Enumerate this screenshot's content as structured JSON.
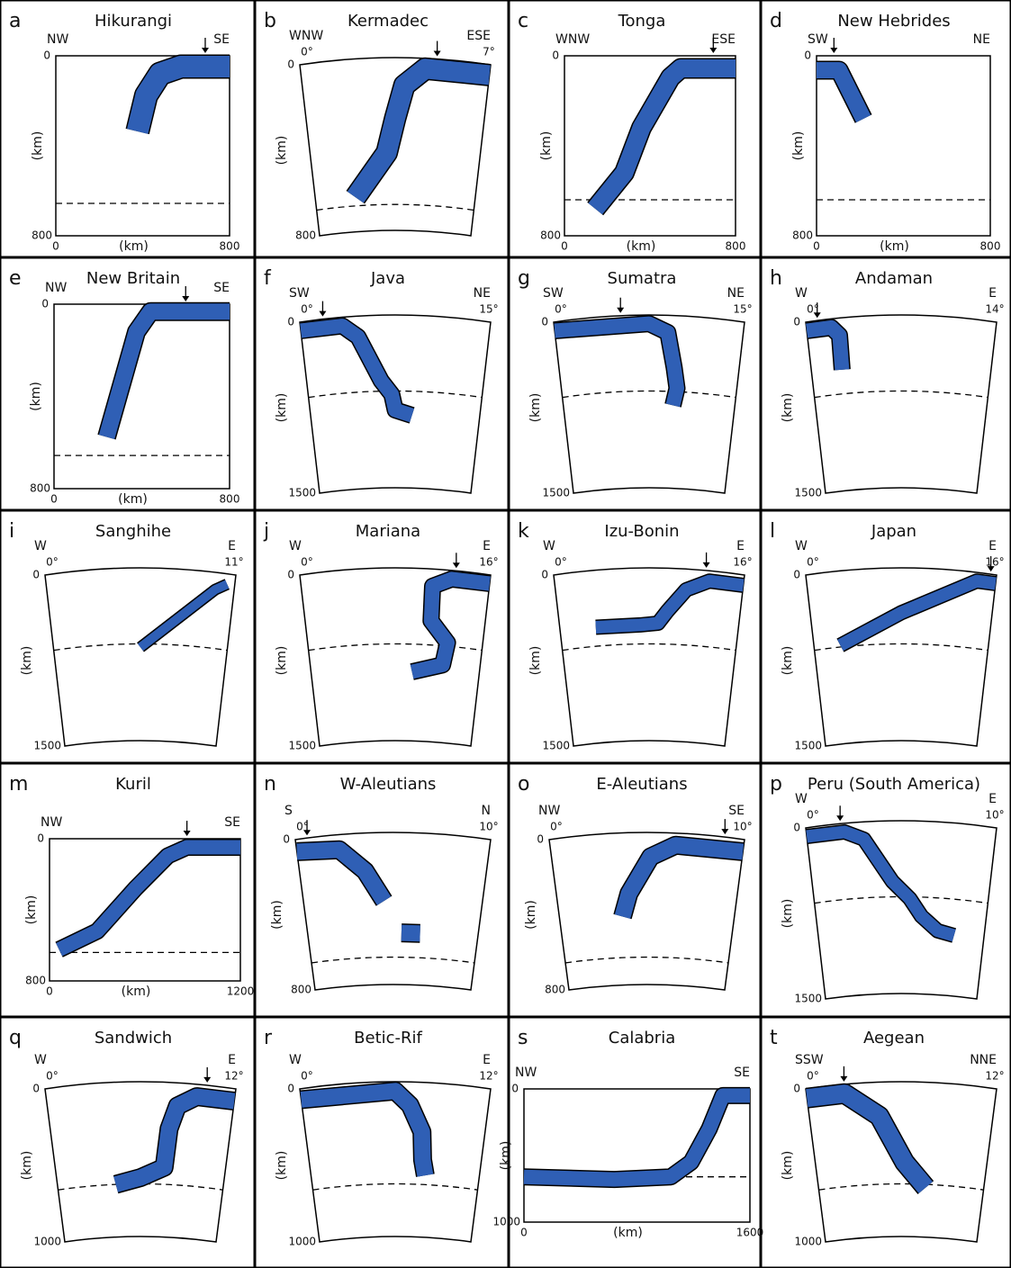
{
  "panels": [
    {
      "letter": "a",
      "title": "Hikurangi",
      "left": "NW",
      "right": "SE",
      "depth_top": "0",
      "depth_bottom": "800",
      "depth_unit": "(km)",
      "x_start": "0",
      "x_unit": "(km)",
      "x_end": "800"
    },
    {
      "letter": "b",
      "title": "Kermadec",
      "left": "WNW",
      "right": "ESE",
      "deg_start": "0°",
      "deg_end": "7°",
      "depth_top": "0",
      "depth_bottom": "800",
      "depth_unit": "(km)"
    },
    {
      "letter": "c",
      "title": "Tonga",
      "left": "WNW",
      "right": "ESE",
      "depth_top": "0",
      "depth_bottom": "800",
      "depth_unit": "(km)",
      "x_start": "0",
      "x_unit": "(km)",
      "x_end": "800"
    },
    {
      "letter": "d",
      "title": "New Hebrides",
      "left": "SW",
      "right": "NE",
      "depth_top": "0",
      "depth_bottom": "800",
      "depth_unit": "(km)",
      "x_start": "0",
      "x_unit": "(km)",
      "x_end": "800"
    },
    {
      "letter": "e",
      "title": "New Britain",
      "left": "NW",
      "right": "SE",
      "depth_top": "0",
      "depth_bottom": "800",
      "depth_unit": "(km)",
      "x_start": "0",
      "x_unit": "(km)",
      "x_end": "800"
    },
    {
      "letter": "f",
      "title": "Java",
      "left": "SW",
      "right": "NE",
      "deg_start": "0°",
      "deg_end": "15°",
      "depth_top": "0",
      "depth_bottom": "1500",
      "depth_unit": "(km)"
    },
    {
      "letter": "g",
      "title": "Sumatra",
      "left": "SW",
      "right": "NE",
      "deg_start": "0°",
      "deg_end": "15°",
      "depth_top": "0",
      "depth_bottom": "1500",
      "depth_unit": "(km)"
    },
    {
      "letter": "h",
      "title": "Andaman",
      "left": "W",
      "right": "E",
      "deg_start": "0°",
      "deg_end": "14°",
      "depth_top": "0",
      "depth_bottom": "1500",
      "depth_unit": "(km)"
    },
    {
      "letter": "i",
      "title": "Sanghihe",
      "left": "W",
      "right": "E",
      "deg_start": "0°",
      "deg_end": "11°",
      "depth_top": "0",
      "depth_bottom": "1500",
      "depth_unit": "(km)"
    },
    {
      "letter": "j",
      "title": "Mariana",
      "left": "W",
      "right": "E",
      "deg_start": "0°",
      "deg_end": "16°",
      "depth_top": "0",
      "depth_bottom": "1500",
      "depth_unit": "(km)"
    },
    {
      "letter": "k",
      "title": "Izu-Bonin",
      "left": "W",
      "right": "E",
      "deg_start": "0°",
      "deg_end": "16°",
      "depth_top": "0",
      "depth_bottom": "1500",
      "depth_unit": "(km)"
    },
    {
      "letter": "l",
      "title": "Japan",
      "left": "W",
      "right": "E",
      "deg_start": "0°",
      "deg_end": "16°",
      "depth_top": "0",
      "depth_bottom": "1500",
      "depth_unit": "(km)"
    },
    {
      "letter": "m",
      "title": "Kuril",
      "left": "NW",
      "right": "SE",
      "depth_top": "0",
      "depth_bottom": "800",
      "depth_unit": "(km)",
      "x_start": "0",
      "x_unit": "(km)",
      "x_end": "1200"
    },
    {
      "letter": "n",
      "title": "W-Aleutians",
      "left": "S",
      "right": "N",
      "deg_start": "0°",
      "deg_end": "10°",
      "depth_top": "0",
      "depth_bottom": "800",
      "depth_unit": "(km)"
    },
    {
      "letter": "o",
      "title": "E-Aleutians",
      "left": "NW",
      "right": "SE",
      "deg_start": "0°",
      "deg_end": "10°",
      "depth_top": "0",
      "depth_bottom": "800",
      "depth_unit": "(km)"
    },
    {
      "letter": "p",
      "title": "Peru (South America)",
      "left": "W",
      "right": "E",
      "deg_start": "0°",
      "deg_end": "10°",
      "depth_top": "0",
      "depth_bottom": "1500",
      "depth_unit": "(km)"
    },
    {
      "letter": "q",
      "title": "Sandwich",
      "left": "W",
      "right": "E",
      "deg_start": "0°",
      "deg_end": "12°",
      "depth_top": "0",
      "depth_bottom": "1000",
      "depth_unit": "(km)"
    },
    {
      "letter": "r",
      "title": "Betic-Rif",
      "left": "W",
      "right": "E",
      "deg_start": "0°",
      "deg_end": "12°",
      "depth_top": "0",
      "depth_bottom": "1000",
      "depth_unit": "(km)"
    },
    {
      "letter": "s",
      "title": "Calabria",
      "left": "NW",
      "right": "SE",
      "depth_top": "0",
      "depth_bottom": "1000",
      "depth_unit": "(km)",
      "x_start": "0",
      "x_unit": "(km)",
      "x_end": "1600"
    },
    {
      "letter": "t",
      "title": "Aegean",
      "left": "SSW",
      "right": "NNE",
      "deg_start": "0°",
      "deg_end": "12°",
      "depth_top": "0",
      "depth_bottom": "1000",
      "depth_unit": "(km)"
    }
  ]
}
